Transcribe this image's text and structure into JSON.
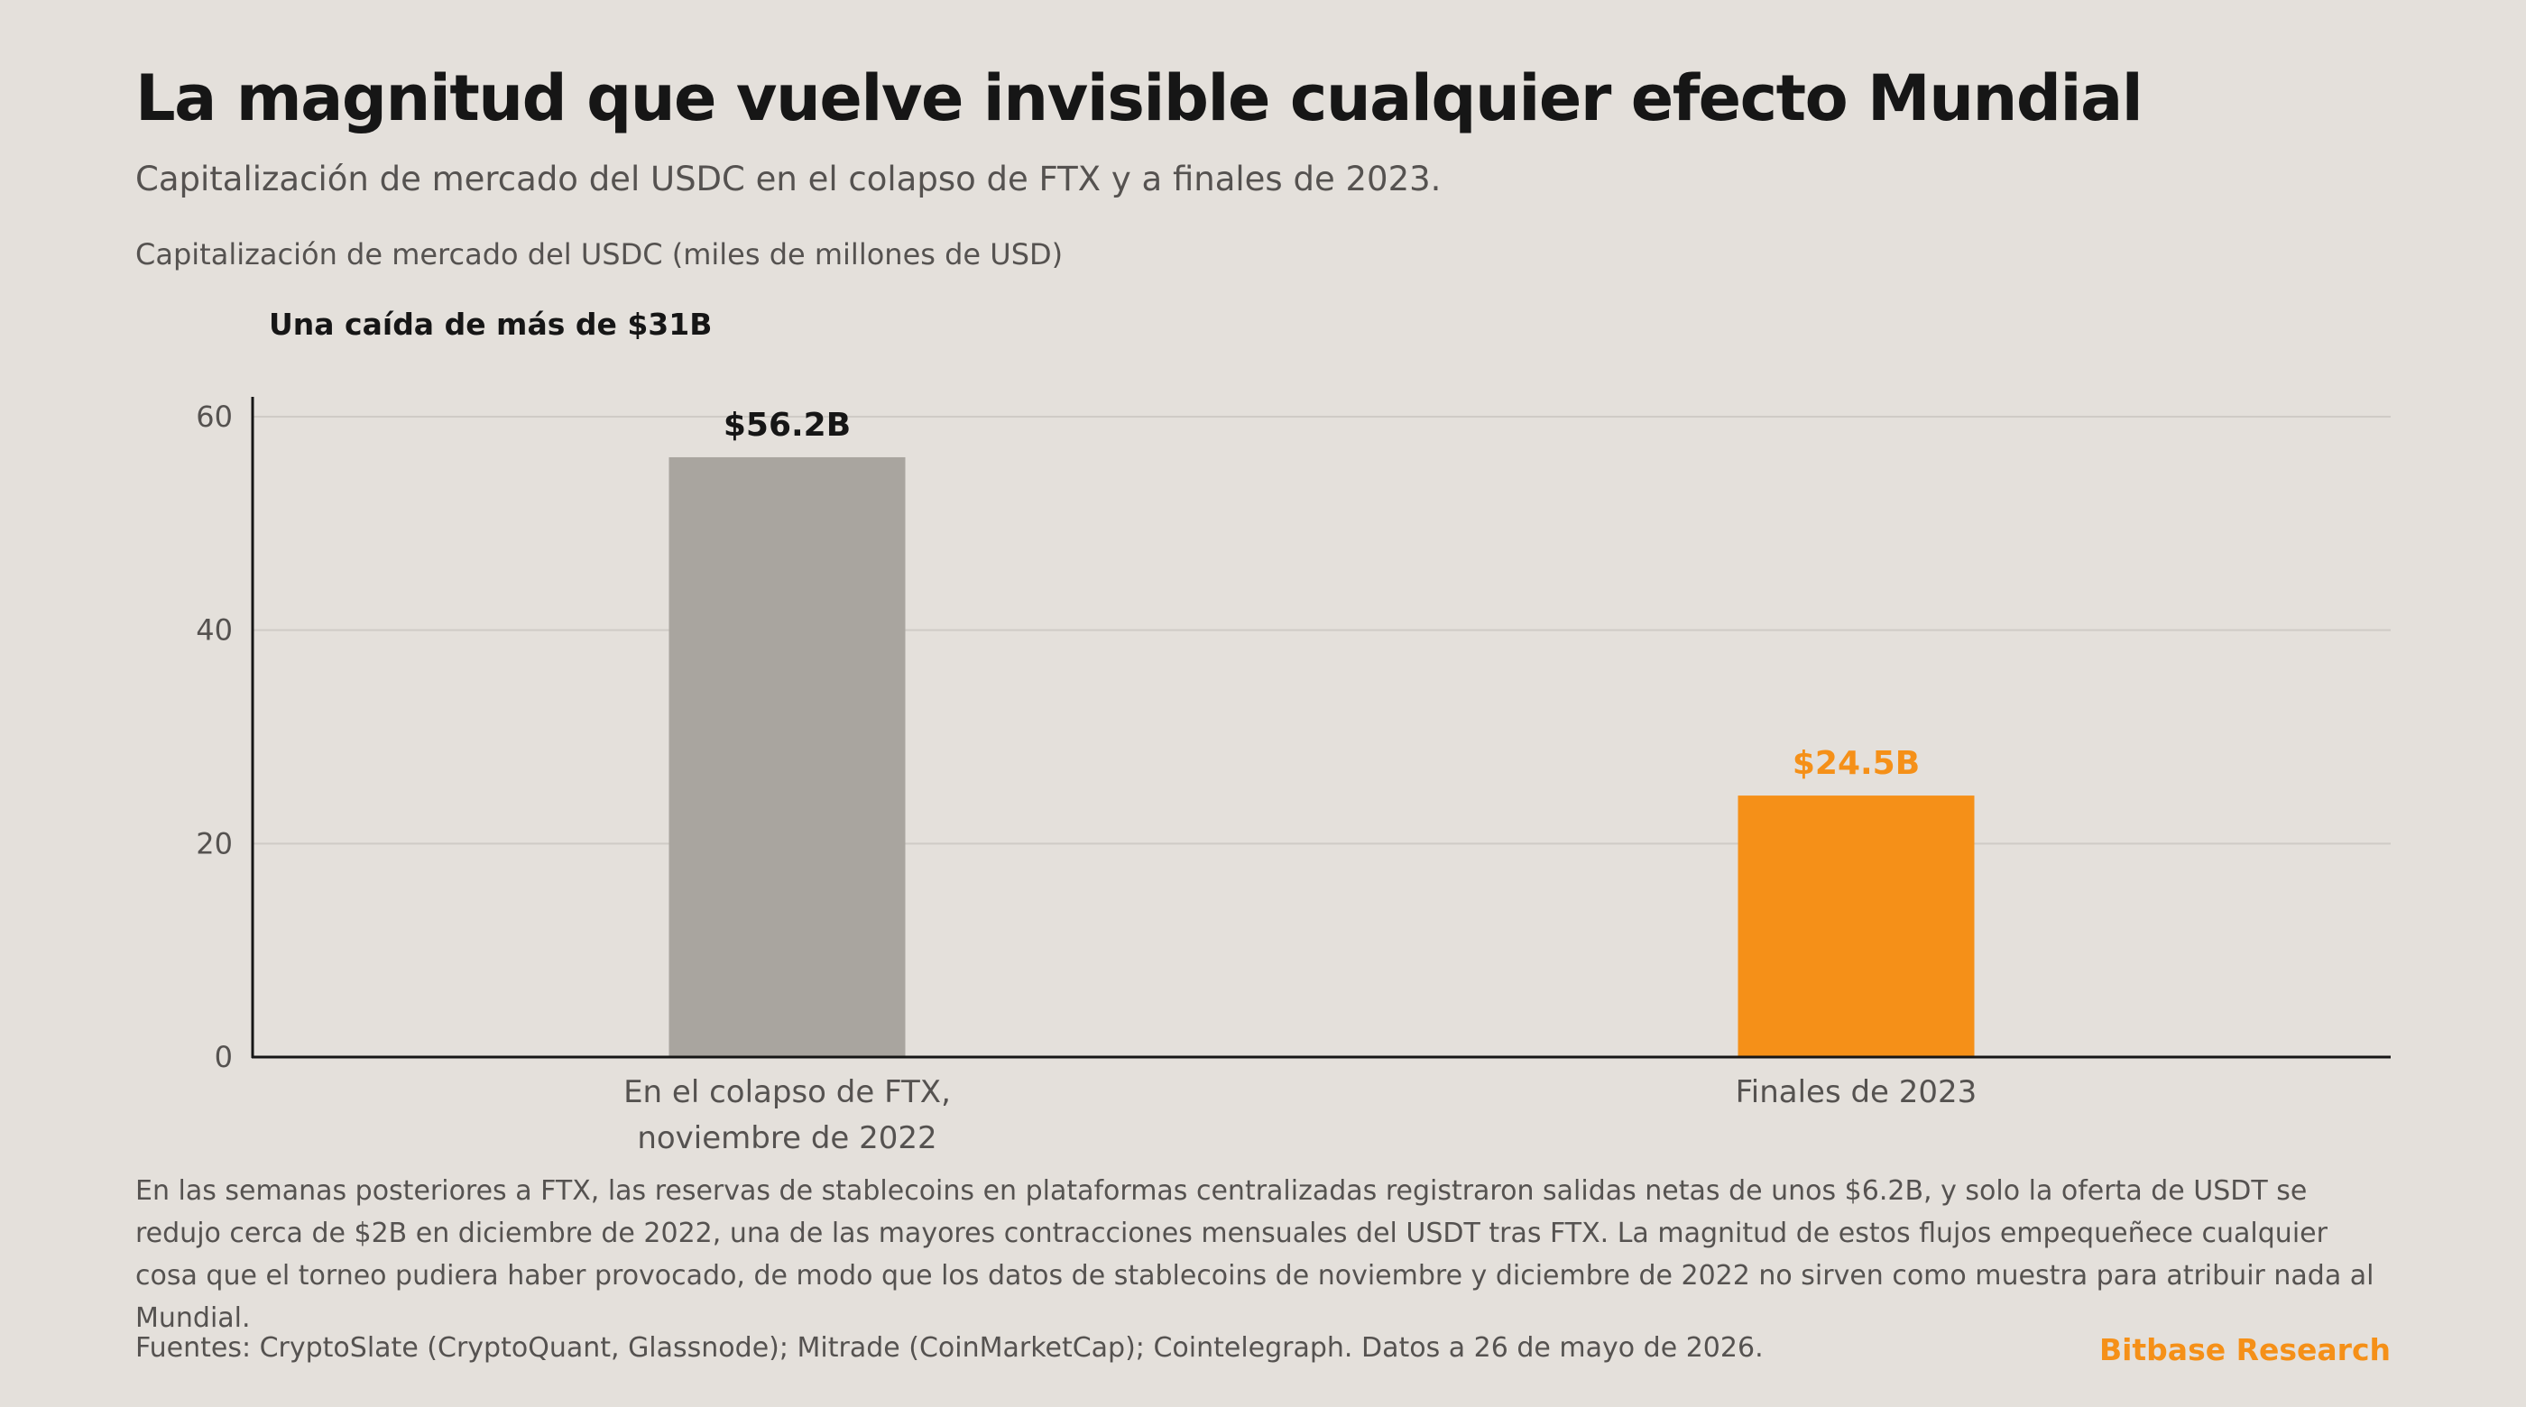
{
  "header": {
    "title": "La magnitud que vuelve invisible cualquier efecto Mundial",
    "subtitle": "Capitalización de mercado del USDC en el colapso de FTX y a finales de 2023."
  },
  "chart_data": {
    "type": "bar",
    "ylabel": "Capitalización de mercado del USDC (miles de millones de USD)",
    "annotation": "Una caída de más de $31B",
    "categories": [
      [
        "En el colapso de FTX,",
        "noviembre de 2022"
      ],
      [
        "Finales de 2023"
      ]
    ],
    "values": [
      56.2,
      24.5
    ],
    "value_labels": [
      "$56.2B",
      "$24.5B"
    ],
    "colors": [
      "#a9a59f",
      "#f59018"
    ],
    "value_label_colors": [
      "#161616",
      "#f59018"
    ],
    "ylim": [
      0,
      60
    ],
    "yticks": [
      "0",
      "20",
      "40",
      "60"
    ],
    "grid": true
  },
  "footer": {
    "note": "En las semanas posteriores a FTX, las reservas de stablecoins en plataformas centralizadas registraron salidas netas de unos $6.2B, y solo la oferta de USDT se redujo cerca de $2B en diciembre de 2022, una de las mayores contracciones mensuales del USDT tras FTX. La magnitud de estos flujos empequeñece cualquier cosa que el torneo pudiera haber provocado, de modo que los datos de stablecoins de noviembre y diciembre de 2022 no sirven como muestra para atribuir nada al Mundial.",
    "sources": "Fuentes: CryptoSlate (CryptoQuant, Glassnode); Mitrade (CoinMarketCap); Cointelegraph. Datos a 26 de mayo de 2026.",
    "brand": "Bitbase Research",
    "brand_color": "#f59018"
  }
}
